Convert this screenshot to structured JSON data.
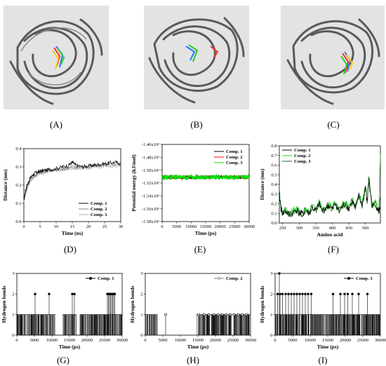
{
  "figure": {
    "panel_labels": {
      "A": "(A)",
      "B": "(B)",
      "C": "(C)",
      "D": "(D)",
      "E": "(E)",
      "F": "(F)",
      "G": "(G)",
      "H": "(H)",
      "I": "(I)"
    }
  },
  "colors": {
    "protein": "#5a5a5a",
    "comp1": "#000000",
    "comp2_E": "#ff0000",
    "comp3_E": "#00e000",
    "comp2_F": "#22cc22",
    "comp3_F": "#1a6a1a",
    "comp2_D": "#888888",
    "comp3_D": "#b0b0b0"
  },
  "chart_data": [
    {
      "id": "D",
      "type": "line",
      "xlabel": "Time (ns)",
      "ylabel": "Distance (nm)",
      "xlim": [
        0,
        30
      ],
      "ylim": [
        0,
        0.4
      ],
      "xticks": [
        "0",
        "5",
        "10",
        "15",
        "20",
        "25",
        "30"
      ],
      "yticks": [
        "0.0",
        "0.1",
        "0.2",
        "0.3",
        "0.4"
      ],
      "legend": "bottom-right",
      "series": [
        {
          "name": "Comp. 1",
          "x": [
            0,
            0.5,
            1,
            2,
            3,
            4,
            5,
            6,
            8,
            10,
            12,
            14,
            15,
            16,
            18,
            20,
            22,
            24,
            26,
            28,
            30
          ],
          "y": [
            0.12,
            0.17,
            0.2,
            0.24,
            0.26,
            0.27,
            0.275,
            0.28,
            0.285,
            0.29,
            0.3,
            0.31,
            0.325,
            0.31,
            0.3,
            0.305,
            0.31,
            0.315,
            0.32,
            0.325,
            0.32
          ]
        },
        {
          "name": "Comp. 2",
          "x": [
            0,
            0.5,
            1,
            2,
            3,
            4,
            5,
            6,
            8,
            10,
            12,
            14,
            16,
            18,
            20,
            22,
            24,
            26,
            28,
            30
          ],
          "y": [
            0.12,
            0.16,
            0.19,
            0.23,
            0.25,
            0.26,
            0.27,
            0.275,
            0.28,
            0.285,
            0.29,
            0.295,
            0.3,
            0.3,
            0.3,
            0.305,
            0.31,
            0.31,
            0.315,
            0.315
          ]
        },
        {
          "name": "Comp. 3",
          "x": [
            0,
            0.5,
            1,
            2,
            3,
            4,
            5,
            6,
            8,
            10,
            12,
            14,
            16,
            18,
            20,
            22,
            24,
            26,
            28,
            30
          ],
          "y": [
            0.11,
            0.15,
            0.18,
            0.22,
            0.24,
            0.255,
            0.265,
            0.27,
            0.275,
            0.28,
            0.285,
            0.29,
            0.29,
            0.295,
            0.295,
            0.3,
            0.3,
            0.305,
            0.305,
            0.31
          ]
        }
      ]
    },
    {
      "id": "E",
      "type": "line",
      "xlabel": "Time (ps)",
      "ylabel": "Potential energy (kJ/mol)",
      "xlim": [
        0,
        30000
      ],
      "ylim": [
        -1.58,
        -1.46
      ],
      "xticks": [
        "0",
        "5000",
        "10000",
        "15000",
        "20000",
        "25000",
        "30000"
      ],
      "yticks": [
        "-1.46x10⁶",
        "-1.48x10⁶",
        "-1.50x10⁶",
        "-1.52x10⁶",
        "-1.54x10⁶",
        "-1.56x10⁶",
        "-1.58x10⁶"
      ],
      "legend": "top-right",
      "series": [
        {
          "name": "Comp. 1",
          "x": [
            0,
            30000
          ],
          "y": [
            -1.511,
            -1.511
          ]
        },
        {
          "name": "Comp. 2",
          "x": [
            0,
            30000
          ],
          "y": [
            -1.511,
            -1.511
          ]
        },
        {
          "name": "Comp. 3",
          "x": [
            0,
            30000
          ],
          "y": [
            -1.511,
            -1.511
          ]
        }
      ]
    },
    {
      "id": "F",
      "type": "line",
      "xlabel": "Amino acid",
      "ylabel": "Distance (nm)",
      "xlim": [
        240,
        545
      ],
      "ylim": [
        0,
        0.8
      ],
      "xticks": [
        "250",
        "300",
        "350",
        "400",
        "450",
        "500"
      ],
      "yticks": [
        "0.0",
        "0.1",
        "0.2",
        "0.3",
        "0.4",
        "0.5",
        "0.6",
        "0.7",
        "0.8"
      ],
      "legend": "top-left",
      "series": [
        {
          "name": "Comp. 1",
          "x": [
            240,
            245,
            250,
            260,
            270,
            280,
            290,
            300,
            310,
            320,
            330,
            340,
            350,
            360,
            370,
            380,
            390,
            400,
            410,
            420,
            430,
            440,
            450,
            460,
            470,
            480,
            490,
            500,
            505,
            510,
            520,
            530,
            540,
            545
          ],
          "y": [
            0.3,
            0.15,
            0.1,
            0.12,
            0.08,
            0.1,
            0.14,
            0.1,
            0.09,
            0.13,
            0.1,
            0.16,
            0.12,
            0.2,
            0.12,
            0.15,
            0.18,
            0.14,
            0.2,
            0.12,
            0.17,
            0.2,
            0.14,
            0.22,
            0.15,
            0.28,
            0.18,
            0.38,
            0.2,
            0.48,
            0.16,
            0.2,
            0.12,
            0.15
          ]
        },
        {
          "name": "Comp. 2",
          "x": [
            240,
            245,
            250,
            260,
            270,
            280,
            290,
            300,
            310,
            320,
            330,
            340,
            350,
            360,
            370,
            380,
            390,
            400,
            410,
            420,
            430,
            440,
            450,
            460,
            470,
            480,
            490,
            500,
            505,
            510,
            520,
            530,
            540,
            545
          ],
          "y": [
            0.32,
            0.18,
            0.12,
            0.14,
            0.1,
            0.12,
            0.16,
            0.12,
            0.11,
            0.15,
            0.12,
            0.18,
            0.14,
            0.22,
            0.14,
            0.17,
            0.2,
            0.16,
            0.22,
            0.14,
            0.19,
            0.22,
            0.16,
            0.24,
            0.17,
            0.3,
            0.2,
            0.4,
            0.22,
            0.46,
            0.18,
            0.22,
            0.14,
            0.72
          ]
        },
        {
          "name": "Comp. 3",
          "x": [
            240,
            245,
            250,
            260,
            270,
            280,
            290,
            300,
            310,
            320,
            330,
            340,
            350,
            360,
            370,
            380,
            390,
            400,
            410,
            420,
            430,
            440,
            450,
            460,
            470,
            480,
            490,
            500,
            505,
            510,
            520,
            530,
            540,
            545
          ],
          "y": [
            0.28,
            0.16,
            0.11,
            0.13,
            0.09,
            0.11,
            0.15,
            0.11,
            0.1,
            0.14,
            0.11,
            0.17,
            0.13,
            0.21,
            0.13,
            0.16,
            0.19,
            0.15,
            0.21,
            0.13,
            0.18,
            0.21,
            0.15,
            0.23,
            0.16,
            0.29,
            0.19,
            0.39,
            0.21,
            0.44,
            0.17,
            0.21,
            0.13,
            0.3
          ]
        }
      ]
    },
    {
      "id": "G",
      "type": "bar",
      "xlabel": "Time (ps)",
      "ylabel": "Hydrogen bonds",
      "xlim": [
        0,
        30000
      ],
      "ylim": [
        0,
        3
      ],
      "xticks": [
        "0",
        "5000",
        "10000",
        "15000",
        "20000",
        "25000",
        "30000"
      ],
      "yticks": [
        "0",
        "1",
        "2",
        "3"
      ],
      "legend": "top-right",
      "series": [
        {
          "name": "Comp. 1",
          "ones_ranges": [
            [
              0,
              11000
            ],
            [
              13000,
              17000
            ],
            [
              18000,
              30000
            ]
          ],
          "twos": [
            5200,
            9200,
            15800,
            16400,
            25800,
            26100,
            26400,
            26700,
            27000,
            27300,
            27600,
            27900
          ]
        }
      ]
    },
    {
      "id": "H",
      "type": "bar",
      "xlabel": "Time (ps)",
      "ylabel": "Hydrogen bonds",
      "xlim": [
        0,
        30000
      ],
      "ylim": [
        0,
        3
      ],
      "xticks": [
        "0",
        "5000",
        "10000",
        "15000",
        "20000",
        "25000",
        "30000"
      ],
      "yticks": [
        "0",
        "1",
        "2",
        "3"
      ],
      "legend": "top-right",
      "series": [
        {
          "name": "Comp. 2",
          "ones_ranges": [
            [
              0,
              3500
            ],
            [
              14500,
              30000
            ]
          ],
          "ones_points": [
            5800,
            15200,
            16800,
            18100,
            19600,
            20800,
            21900,
            23100,
            24200,
            25300,
            26500,
            27600,
            28800
          ],
          "twos": []
        }
      ]
    },
    {
      "id": "I",
      "type": "bar",
      "xlabel": "Time (ps)",
      "ylabel": "Hydrogen bonds",
      "xlim": [
        0,
        30000
      ],
      "ylim": [
        0,
        3
      ],
      "xticks": [
        "0",
        "5000",
        "10000",
        "15000",
        "20000",
        "25000",
        "30000"
      ],
      "yticks": [
        "0",
        "1",
        "2",
        "3"
      ],
      "legend": "top-right",
      "series": [
        {
          "name": "Comp. 3",
          "ones_ranges": [
            [
              0,
              30000
            ]
          ],
          "twos": [
            700,
            1400,
            2100,
            3000,
            3800,
            4600,
            5400,
            6200,
            7000,
            7800,
            8600,
            9400,
            10300,
            16500,
            18600,
            19800,
            20700,
            22000,
            23800,
            26300
          ],
          "threes": [
            1200
          ]
        }
      ]
    }
  ]
}
